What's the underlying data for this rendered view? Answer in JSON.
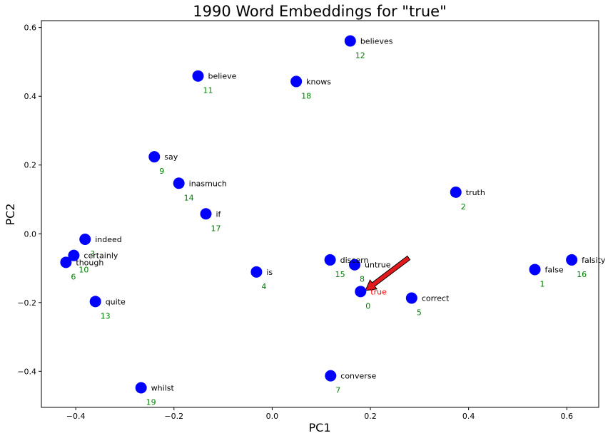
{
  "chart_data": {
    "type": "scatter",
    "title": "1990 Word Embeddings for \"true\"",
    "xlabel": "PC1",
    "ylabel": "PC2",
    "xlim": [
      -0.47,
      0.665
    ],
    "ylim": [
      -0.505,
      0.62
    ],
    "xticks": [
      "−0.4",
      "−0.2",
      "0.0",
      "0.2",
      "0.4",
      "0.6"
    ],
    "xtick_values": [
      -0.4,
      -0.2,
      0.0,
      0.2,
      0.4,
      0.6
    ],
    "yticks": [
      "−0.4",
      "−0.2",
      "0.0",
      "0.2",
      "0.4",
      "0.6"
    ],
    "ytick_values": [
      -0.4,
      -0.2,
      0.0,
      0.2,
      0.4,
      0.6
    ],
    "grid": false,
    "marker_color": "#0000ff",
    "word_color": "#000000",
    "target_color": "#ff0000",
    "index_color": "#008000",
    "arrow": {
      "from": [
        0.278,
        -0.07
      ],
      "to": [
        0.19,
        -0.165
      ],
      "color": "#e31a1c"
    },
    "points": [
      {
        "word": "true",
        "index": "0",
        "x": 0.18,
        "y": -0.168,
        "target": true
      },
      {
        "word": "false",
        "index": "1",
        "x": 0.535,
        "y": -0.104
      },
      {
        "word": "truth",
        "index": "2",
        "x": 0.374,
        "y": 0.121
      },
      {
        "word": "indeed",
        "index": "3",
        "x": -0.381,
        "y": -0.016
      },
      {
        "word": "is",
        "index": "4",
        "x": -0.032,
        "y": -0.111
      },
      {
        "word": "correct",
        "index": "5",
        "x": 0.284,
        "y": -0.187
      },
      {
        "word": "though",
        "index": "6",
        "x": -0.42,
        "y": -0.083
      },
      {
        "word": "converse",
        "index": "7",
        "x": 0.119,
        "y": -0.413
      },
      {
        "word": "untrue",
        "index": "8",
        "x": 0.168,
        "y": -0.09
      },
      {
        "word": "say",
        "index": "9",
        "x": -0.24,
        "y": 0.224
      },
      {
        "word": "certainly",
        "index": "10",
        "x": -0.404,
        "y": -0.063
      },
      {
        "word": "believe",
        "index": "11",
        "x": -0.151,
        "y": 0.459
      },
      {
        "word": "believes",
        "index": "12",
        "x": 0.159,
        "y": 0.561
      },
      {
        "word": "quite",
        "index": "13",
        "x": -0.36,
        "y": -0.197
      },
      {
        "word": "inasmuch",
        "index": "14",
        "x": -0.19,
        "y": 0.147
      },
      {
        "word": "discern",
        "index": "15",
        "x": 0.118,
        "y": -0.076
      },
      {
        "word": "falsity",
        "index": "16",
        "x": 0.61,
        "y": -0.076
      },
      {
        "word": "if",
        "index": "17",
        "x": -0.135,
        "y": 0.058
      },
      {
        "word": "knows",
        "index": "18",
        "x": 0.049,
        "y": 0.443
      },
      {
        "word": "whilst",
        "index": "19",
        "x": -0.267,
        "y": -0.448
      }
    ]
  }
}
